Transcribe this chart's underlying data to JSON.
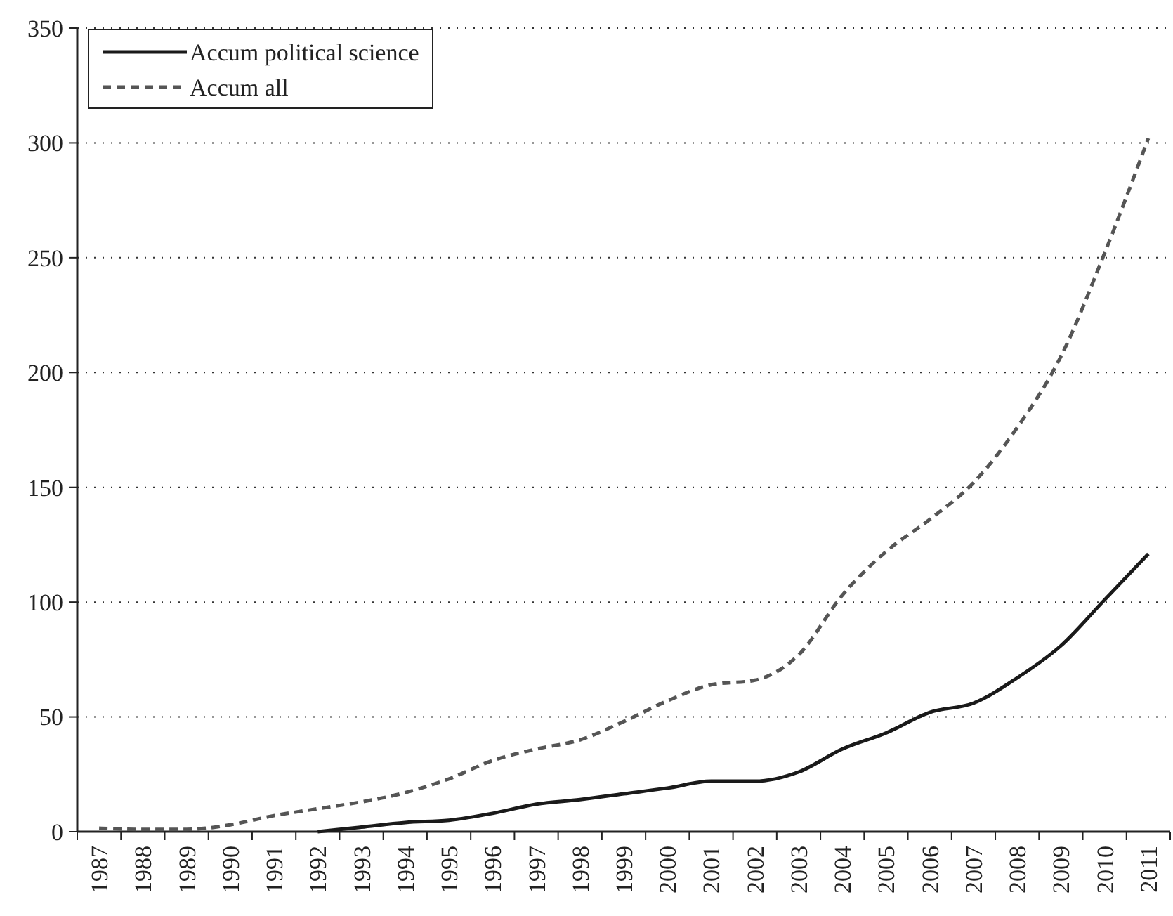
{
  "chart_data": {
    "type": "line",
    "categories": [
      "1987",
      "1988",
      "1989",
      "1990",
      "1991",
      "1992",
      "1993",
      "1994",
      "1995",
      "1996",
      "1997",
      "1998",
      "1999",
      "2000",
      "2001",
      "2002",
      "2003",
      "2004",
      "2005",
      "2006",
      "2007",
      "2008",
      "2009",
      "2010",
      "2011"
    ],
    "series": [
      {
        "name": "Accum political science",
        "color": "#1a1a1a",
        "line_style": "solid",
        "values": [
          null,
          null,
          null,
          null,
          null,
          0,
          2,
          4,
          5,
          8,
          12,
          14,
          16.5,
          19,
          22,
          22,
          26,
          36,
          43,
          52,
          56,
          67,
          81,
          101,
          121
        ]
      },
      {
        "name": "Accum all",
        "color": "#555555",
        "line_style": "dashed",
        "values": [
          1.5,
          1,
          1,
          3,
          7,
          10,
          13,
          17,
          23,
          31,
          36,
          40,
          48,
          57,
          64,
          66,
          77,
          103,
          122,
          136,
          152,
          176,
          207,
          252,
          302
        ]
      }
    ],
    "ylim": [
      0,
      350
    ],
    "yticks": [
      0,
      50,
      100,
      150,
      200,
      250,
      300,
      350
    ],
    "grid": "y",
    "legend": "top left",
    "marker": "none"
  }
}
